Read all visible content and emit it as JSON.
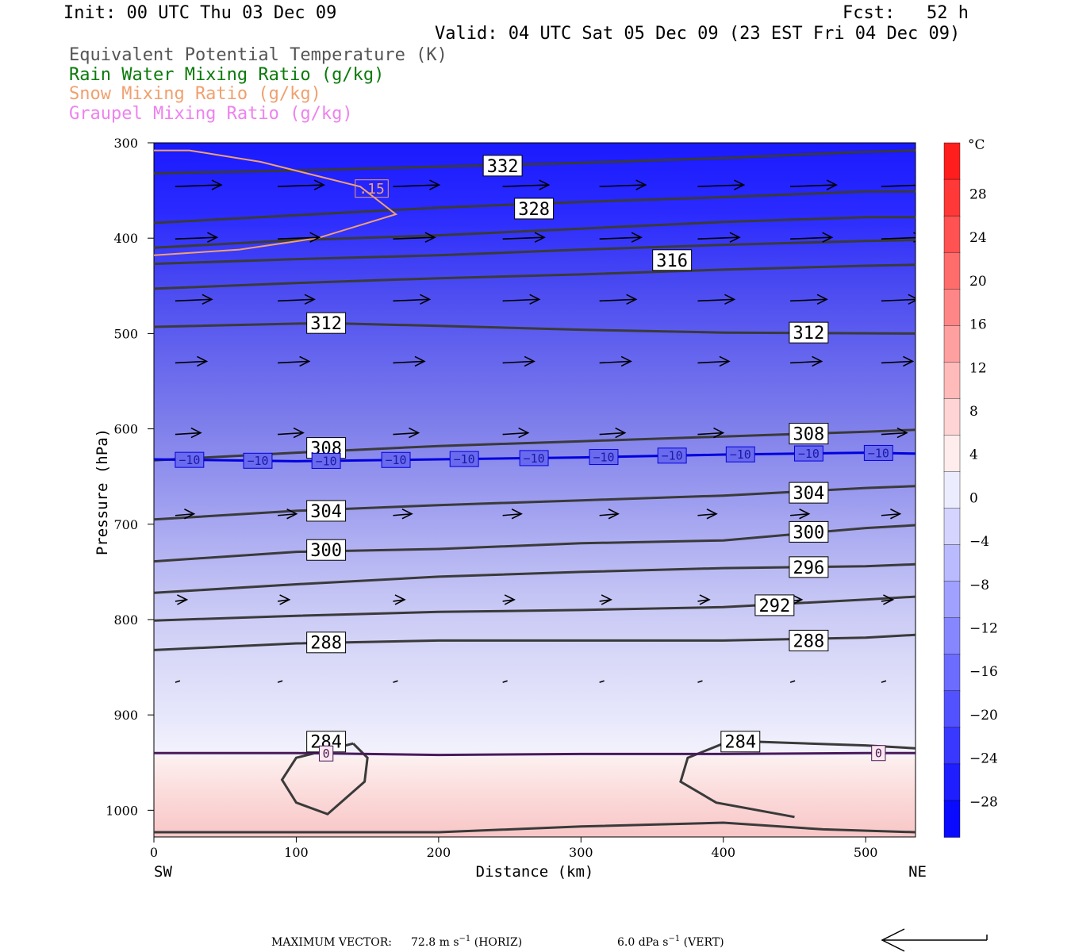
{
  "header": {
    "init": "Init: 00 UTC Thu 03 Dec 09",
    "fcst": "Fcst:   52 h",
    "valid": "Valid: 04 UTC Sat 05 Dec 09 (23 EST Fri 04 Dec 09)"
  },
  "legend": [
    {
      "text": "Equivalent Potential Temperature (K)",
      "color": "#555555"
    },
    {
      "text": "Rain Water Mixing Ratio (g/kg)",
      "color": "#0a7a0a"
    },
    {
      "text": "Snow Mixing Ratio (g/kg)",
      "color": "#f0a070"
    },
    {
      "text": "Graupel Mixing Ratio (g/kg)",
      "color": "#ee82ee"
    }
  ],
  "colorbar": {
    "unit": "°C",
    "labels": [
      "28",
      "24",
      "20",
      "16",
      "12",
      "8",
      "4",
      "0",
      "−4",
      "−8",
      "−12",
      "−16",
      "−20",
      "−24",
      "−28"
    ]
  },
  "footer": {
    "max_label": "MAXIMUM VECTOR:",
    "horiz": "72.8 m s",
    "horiz_tail": " (HORIZ)",
    "vert": "6.0 dPa s",
    "vert_tail": " (VERT)"
  },
  "chart_data": {
    "type": "cross-section",
    "xlabel": "Distance (km)",
    "ylabel": "Pressure (hPa)",
    "xlim": [
      0,
      535
    ],
    "ylim": [
      1028,
      300
    ],
    "x_ticks": [
      0,
      100,
      200,
      300,
      400,
      500
    ],
    "y_ticks": [
      300,
      400,
      500,
      600,
      700,
      800,
      900,
      1000
    ],
    "x_end_labels": {
      "left": "SW",
      "right": "NE"
    },
    "theta_e_contours": [
      {
        "label": "332",
        "points": [
          [
            0,
            332
          ],
          [
            100,
            329
          ],
          [
            200,
            325
          ],
          [
            300,
            321
          ],
          [
            400,
            316
          ],
          [
            490,
            310
          ],
          [
            535,
            308
          ]
        ],
        "labels_at": [
          [
            245,
            324
          ]
        ]
      },
      {
        "label": "328",
        "points": [
          [
            0,
            384
          ],
          [
            100,
            376
          ],
          [
            200,
            368
          ],
          [
            300,
            362
          ],
          [
            400,
            357
          ],
          [
            500,
            351
          ],
          [
            535,
            351
          ]
        ],
        "labels_at": [
          [
            267,
            369
          ]
        ]
      },
      {
        "label": "",
        "points": [
          [
            0,
            410
          ],
          [
            100,
            402
          ],
          [
            200,
            397
          ],
          [
            300,
            390
          ],
          [
            400,
            383
          ],
          [
            500,
            378
          ],
          [
            535,
            378
          ]
        ],
        "labels_at": []
      },
      {
        "label": "316",
        "points": [
          [
            0,
            427
          ],
          [
            100,
            422
          ],
          [
            200,
            418
          ],
          [
            300,
            412
          ],
          [
            400,
            407
          ],
          [
            500,
            403
          ],
          [
            535,
            402
          ]
        ],
        "labels_at": [
          [
            364,
            423
          ]
        ]
      },
      {
        "label": "",
        "points": [
          [
            0,
            453
          ],
          [
            100,
            447
          ],
          [
            200,
            442
          ],
          [
            300,
            438
          ],
          [
            400,
            433
          ],
          [
            500,
            429
          ],
          [
            535,
            428
          ]
        ],
        "labels_at": []
      },
      {
        "label": "312",
        "points": [
          [
            0,
            493
          ],
          [
            120,
            489
          ],
          [
            200,
            492
          ],
          [
            300,
            496
          ],
          [
            400,
            499
          ],
          [
            535,
            500
          ]
        ],
        "labels_at": [
          [
            121,
            489
          ],
          [
            460,
            499
          ]
        ]
      },
      {
        "label": "308",
        "points": [
          [
            0,
            633
          ],
          [
            100,
            625
          ],
          [
            200,
            618
          ],
          [
            300,
            613
          ],
          [
            400,
            608
          ],
          [
            500,
            603
          ],
          [
            535,
            601
          ]
        ],
        "labels_at": [
          [
            121,
            620
          ],
          [
            460,
            605
          ]
        ]
      },
      {
        "label": "304",
        "points": [
          [
            0,
            695
          ],
          [
            100,
            686
          ],
          [
            200,
            680
          ],
          [
            300,
            675
          ],
          [
            400,
            670
          ],
          [
            500,
            662
          ],
          [
            535,
            660
          ]
        ],
        "labels_at": [
          [
            121,
            686
          ],
          [
            460,
            667
          ]
        ]
      },
      {
        "label": "300",
        "points": [
          [
            0,
            739
          ],
          [
            100,
            729
          ],
          [
            200,
            726
          ],
          [
            300,
            720
          ],
          [
            400,
            717
          ],
          [
            500,
            704
          ],
          [
            535,
            701
          ]
        ],
        "labels_at": [
          [
            121,
            727
          ],
          [
            460,
            708
          ]
        ]
      },
      {
        "label": "296",
        "points": [
          [
            0,
            772
          ],
          [
            100,
            763
          ],
          [
            200,
            755
          ],
          [
            300,
            750
          ],
          [
            400,
            746
          ],
          [
            500,
            744
          ],
          [
            535,
            742
          ]
        ],
        "labels_at": [
          [
            460,
            745
          ]
        ]
      },
      {
        "label": "292",
        "points": [
          [
            0,
            801
          ],
          [
            100,
            796
          ],
          [
            200,
            792
          ],
          [
            300,
            790
          ],
          [
            400,
            787
          ],
          [
            500,
            779
          ],
          [
            535,
            776
          ]
        ],
        "labels_at": [
          [
            436,
            785
          ]
        ]
      },
      {
        "label": "288",
        "points": [
          [
            0,
            832
          ],
          [
            100,
            825
          ],
          [
            200,
            822
          ],
          [
            300,
            822
          ],
          [
            400,
            822
          ],
          [
            500,
            819
          ],
          [
            535,
            816
          ]
        ],
        "labels_at": [
          [
            121,
            824
          ],
          [
            460,
            822
          ]
        ]
      },
      {
        "label": "284",
        "points": [
          [
            140,
            930
          ],
          [
            150,
            945
          ],
          [
            148,
            970
          ],
          [
            122,
            1004
          ],
          [
            100,
            992
          ],
          [
            90,
            968
          ],
          [
            100,
            945
          ],
          [
            140,
            930
          ]
        ],
        "labels_at": [
          [
            121,
            928
          ]
        ]
      },
      {
        "label": "284",
        "points": [
          [
            400,
            930
          ],
          [
            375,
            945
          ],
          [
            370,
            970
          ],
          [
            395,
            992
          ],
          [
            450,
            1007
          ]
        ],
        "labels_at": [
          [
            412,
            928
          ]
        ]
      },
      {
        "label": "",
        "points": [
          [
            420,
            928
          ],
          [
            500,
            932
          ],
          [
            535,
            935
          ]
        ],
        "labels_at": []
      },
      {
        "label": "",
        "points": [
          [
            0,
            1023
          ],
          [
            200,
            1023
          ],
          [
            300,
            1017
          ],
          [
            400,
            1013
          ],
          [
            470,
            1020
          ],
          [
            535,
            1023
          ]
        ],
        "labels_at": []
      }
    ],
    "temperature_contours": [
      {
        "label": "−10",
        "color": "#0000dd",
        "points": [
          [
            0,
            632
          ],
          [
            100,
            634
          ],
          [
            200,
            632
          ],
          [
            300,
            630
          ],
          [
            400,
            627
          ],
          [
            500,
            625
          ],
          [
            535,
            626
          ]
        ],
        "label_x": [
          25,
          73,
          121,
          170,
          218,
          267,
          316,
          364,
          412,
          460,
          509
        ]
      },
      {
        "label": "0",
        "color": "#4a1a5a",
        "points": [
          [
            0,
            940
          ],
          [
            100,
            940
          ],
          [
            200,
            942
          ],
          [
            300,
            941
          ],
          [
            400,
            941
          ],
          [
            500,
            940
          ],
          [
            535,
            940
          ]
        ],
        "label_x": [
          121,
          509
        ]
      }
    ],
    "snow_mixing_ratio_contours": [
      {
        "label": ".15",
        "points": [
          [
            0,
            308
          ],
          [
            25,
            308
          ],
          [
            75,
            320
          ],
          [
            145,
            346
          ],
          [
            170,
            375
          ],
          [
            115,
            400
          ],
          [
            60,
            412
          ],
          [
            0,
            418
          ]
        ],
        "labels_at": [
          [
            153,
            348
          ]
        ]
      }
    ],
    "wind_vectors": [
      {
        "p": 345,
        "x": [
          15,
          87,
          168,
          245,
          313,
          382,
          447,
          511
        ]
      },
      {
        "p": 400,
        "x": [
          15,
          87,
          168,
          245,
          313,
          382,
          447,
          511
        ]
      },
      {
        "p": 465,
        "x": [
          15,
          87,
          168,
          245,
          313,
          382,
          447,
          511
        ]
      },
      {
        "p": 530,
        "x": [
          15,
          87,
          168,
          245,
          313,
          382,
          447,
          511
        ]
      },
      {
        "p": 605,
        "x": [
          15,
          87,
          168,
          245,
          313,
          382,
          447,
          511
        ]
      },
      {
        "p": 690,
        "x": [
          15,
          87,
          168,
          245,
          313,
          382,
          447,
          511
        ]
      },
      {
        "p": 780,
        "x": [
          15,
          87,
          168,
          245,
          313,
          382,
          447,
          511
        ]
      },
      {
        "p": 865,
        "x": [
          15,
          87,
          168,
          245,
          313,
          382,
          447,
          511
        ]
      }
    ],
    "max_vector": {
      "horiz": 72.8,
      "vert": 6.0
    }
  }
}
